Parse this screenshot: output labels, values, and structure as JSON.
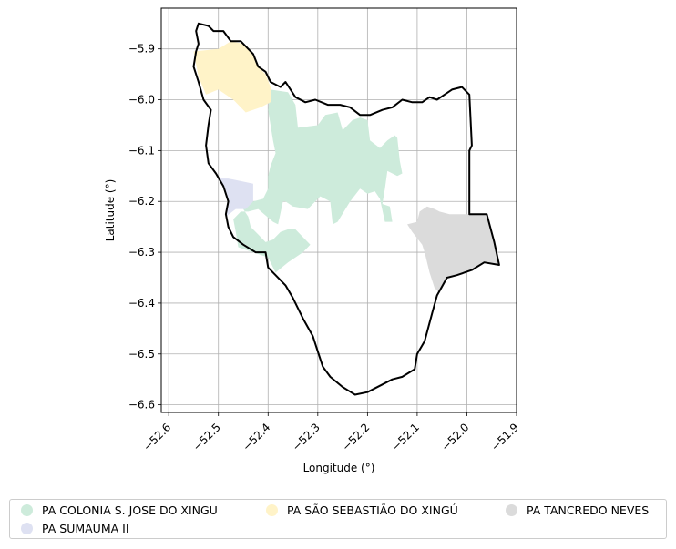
{
  "chart_data": {
    "type": "map",
    "title": "",
    "xlabel": "Longitude (°)",
    "ylabel": "Latitude (°)",
    "xlim": [
      -52.615,
      -51.9
    ],
    "ylim": [
      -6.615,
      -5.82
    ],
    "x_ticks": [
      -52.6,
      -52.5,
      -52.4,
      -52.3,
      -52.2,
      -52.1,
      -52.0,
      -51.9
    ],
    "x_tick_labels": [
      "−52.6",
      "−52.5",
      "−52.4",
      "−52.3",
      "−52.2",
      "−52.1",
      "−52.0",
      "−51.9"
    ],
    "y_ticks": [
      -5.9,
      -6.0,
      -6.1,
      -6.2,
      -6.3,
      -6.4,
      -6.5,
      -6.6
    ],
    "y_tick_labels": [
      "−5.9",
      "−6.0",
      "−6.1",
      "−6.2",
      "−6.3",
      "−6.4",
      "−6.5",
      "−6.6"
    ],
    "grid": true,
    "legend_placement": "bottom",
    "boundary": {
      "color": "#000000",
      "coords": [
        [
          -52.54,
          -5.85
        ],
        [
          -52.52,
          -5.855
        ],
        [
          -52.51,
          -5.865
        ],
        [
          -52.49,
          -5.865
        ],
        [
          -52.475,
          -5.885
        ],
        [
          -52.455,
          -5.885
        ],
        [
          -52.43,
          -5.91
        ],
        [
          -52.42,
          -5.935
        ],
        [
          -52.405,
          -5.945
        ],
        [
          -52.395,
          -5.965
        ],
        [
          -52.375,
          -5.975
        ],
        [
          -52.365,
          -5.965
        ],
        [
          -52.345,
          -5.995
        ],
        [
          -52.325,
          -6.005
        ],
        [
          -52.305,
          -6.0
        ],
        [
          -52.28,
          -6.01
        ],
        [
          -52.255,
          -6.01
        ],
        [
          -52.235,
          -6.015
        ],
        [
          -52.215,
          -6.03
        ],
        [
          -52.195,
          -6.03
        ],
        [
          -52.17,
          -6.02
        ],
        [
          -52.15,
          -6.015
        ],
        [
          -52.13,
          -6.0
        ],
        [
          -52.11,
          -6.005
        ],
        [
          -52.09,
          -6.005
        ],
        [
          -52.075,
          -5.995
        ],
        [
          -52.06,
          -6.0
        ],
        [
          -52.045,
          -5.99
        ],
        [
          -52.03,
          -5.98
        ],
        [
          -52.01,
          -5.975
        ],
        [
          -51.995,
          -5.99
        ],
        [
          -51.99,
          -6.09
        ],
        [
          -51.995,
          -6.1
        ],
        [
          -51.995,
          -6.225
        ],
        [
          -51.96,
          -6.225
        ],
        [
          -51.945,
          -6.28
        ],
        [
          -51.935,
          -6.325
        ],
        [
          -51.965,
          -6.32
        ],
        [
          -51.99,
          -6.335
        ],
        [
          -52.02,
          -6.345
        ],
        [
          -52.04,
          -6.35
        ],
        [
          -52.06,
          -6.385
        ],
        [
          -52.07,
          -6.42
        ],
        [
          -52.085,
          -6.475
        ],
        [
          -52.1,
          -6.5
        ],
        [
          -52.105,
          -6.53
        ],
        [
          -52.13,
          -6.545
        ],
        [
          -52.15,
          -6.55
        ],
        [
          -52.17,
          -6.56
        ],
        [
          -52.2,
          -6.575
        ],
        [
          -52.225,
          -6.58
        ],
        [
          -52.25,
          -6.565
        ],
        [
          -52.275,
          -6.545
        ],
        [
          -52.29,
          -6.525
        ],
        [
          -52.3,
          -6.495
        ],
        [
          -52.31,
          -6.465
        ],
        [
          -52.33,
          -6.43
        ],
        [
          -52.35,
          -6.39
        ],
        [
          -52.365,
          -6.365
        ],
        [
          -52.385,
          -6.345
        ],
        [
          -52.4,
          -6.33
        ],
        [
          -52.405,
          -6.3
        ],
        [
          -52.425,
          -6.3
        ],
        [
          -52.45,
          -6.285
        ],
        [
          -52.47,
          -6.27
        ],
        [
          -52.48,
          -6.25
        ],
        [
          -52.485,
          -6.225
        ],
        [
          -52.48,
          -6.2
        ],
        [
          -52.49,
          -6.17
        ],
        [
          -52.505,
          -6.145
        ],
        [
          -52.52,
          -6.125
        ],
        [
          -52.525,
          -6.09
        ],
        [
          -52.52,
          -6.05
        ],
        [
          -52.515,
          -6.02
        ],
        [
          -52.53,
          -6.0
        ],
        [
          -52.54,
          -5.965
        ],
        [
          -52.55,
          -5.935
        ],
        [
          -52.545,
          -5.905
        ],
        [
          -52.54,
          -5.89
        ],
        [
          -52.545,
          -5.865
        ],
        [
          -52.54,
          -5.85
        ]
      ]
    },
    "series": [
      {
        "name": "PA COLONIA S. JOSE DO XINGU",
        "color": "#cdebdb",
        "coords": [
          [
            -52.395,
            -5.98
          ],
          [
            -52.36,
            -5.985
          ],
          [
            -52.345,
            -6.01
          ],
          [
            -52.34,
            -6.055
          ],
          [
            -52.3,
            -6.05
          ],
          [
            -52.285,
            -6.03
          ],
          [
            -52.26,
            -6.025
          ],
          [
            -52.25,
            -6.06
          ],
          [
            -52.23,
            -6.04
          ],
          [
            -52.215,
            -6.035
          ],
          [
            -52.2,
            -6.04
          ],
          [
            -52.195,
            -6.08
          ],
          [
            -52.175,
            -6.095
          ],
          [
            -52.16,
            -6.08
          ],
          [
            -52.145,
            -6.07
          ],
          [
            -52.14,
            -6.075
          ],
          [
            -52.135,
            -6.12
          ],
          [
            -52.13,
            -6.145
          ],
          [
            -52.14,
            -6.15
          ],
          [
            -52.16,
            -6.14
          ],
          [
            -52.165,
            -6.175
          ],
          [
            -52.17,
            -6.205
          ],
          [
            -52.155,
            -6.21
          ],
          [
            -52.15,
            -6.24
          ],
          [
            -52.165,
            -6.24
          ],
          [
            -52.175,
            -6.195
          ],
          [
            -52.185,
            -6.18
          ],
          [
            -52.2,
            -6.185
          ],
          [
            -52.215,
            -6.175
          ],
          [
            -52.235,
            -6.2
          ],
          [
            -52.26,
            -6.24
          ],
          [
            -52.27,
            -6.245
          ],
          [
            -52.275,
            -6.2
          ],
          [
            -52.295,
            -6.19
          ],
          [
            -52.32,
            -6.215
          ],
          [
            -52.35,
            -6.21
          ],
          [
            -52.365,
            -6.2
          ],
          [
            -52.37,
            -6.2
          ],
          [
            -52.38,
            -6.245
          ],
          [
            -52.39,
            -6.24
          ],
          [
            -52.42,
            -6.215
          ],
          [
            -52.44,
            -6.22
          ],
          [
            -52.455,
            -6.22
          ],
          [
            -52.47,
            -6.235
          ],
          [
            -52.465,
            -6.26
          ],
          [
            -52.46,
            -6.29
          ],
          [
            -52.43,
            -6.3
          ],
          [
            -52.4,
            -6.31
          ],
          [
            -52.385,
            -6.34
          ],
          [
            -52.36,
            -6.32
          ],
          [
            -52.33,
            -6.3
          ],
          [
            -52.315,
            -6.285
          ],
          [
            -52.335,
            -6.265
          ],
          [
            -52.345,
            -6.255
          ],
          [
            -52.36,
            -6.255
          ],
          [
            -52.375,
            -6.26
          ],
          [
            -52.39,
            -6.275
          ],
          [
            -52.405,
            -6.28
          ],
          [
            -52.42,
            -6.265
          ],
          [
            -52.435,
            -6.25
          ],
          [
            -52.44,
            -6.23
          ],
          [
            -52.45,
            -6.215
          ],
          [
            -52.43,
            -6.2
          ],
          [
            -52.41,
            -6.195
          ],
          [
            -52.4,
            -6.175
          ],
          [
            -52.4,
            -6.15
          ],
          [
            -52.395,
            -6.13
          ],
          [
            -52.385,
            -6.105
          ],
          [
            -52.39,
            -6.08
          ],
          [
            -52.395,
            -6.05
          ],
          [
            -52.4,
            -6.02
          ],
          [
            -52.395,
            -5.98
          ]
        ]
      },
      {
        "name": "PA SUMAUMA II",
        "color": "#dee1f2",
        "coords": [
          [
            -52.5,
            -6.155
          ],
          [
            -52.48,
            -6.155
          ],
          [
            -52.455,
            -6.16
          ],
          [
            -52.43,
            -6.165
          ],
          [
            -52.43,
            -6.2
          ],
          [
            -52.445,
            -6.215
          ],
          [
            -52.465,
            -6.215
          ],
          [
            -52.485,
            -6.23
          ],
          [
            -52.48,
            -6.2
          ],
          [
            -52.49,
            -6.17
          ],
          [
            -52.5,
            -6.155
          ]
        ]
      },
      {
        "name": "PA SÃO SEBASTIÃO DO XINGÚ",
        "color": "#fff3c8",
        "coords": [
          [
            -52.55,
            -5.905
          ],
          [
            -52.5,
            -5.9
          ],
          [
            -52.475,
            -5.885
          ],
          [
            -52.45,
            -5.89
          ],
          [
            -52.43,
            -5.91
          ],
          [
            -52.42,
            -5.935
          ],
          [
            -52.405,
            -5.95
          ],
          [
            -52.395,
            -5.975
          ],
          [
            -52.395,
            -6.005
          ],
          [
            -52.415,
            -6.015
          ],
          [
            -52.445,
            -6.025
          ],
          [
            -52.47,
            -6.0
          ],
          [
            -52.5,
            -5.98
          ],
          [
            -52.525,
            -5.99
          ],
          [
            -52.54,
            -5.955
          ],
          [
            -52.55,
            -5.905
          ]
        ]
      },
      {
        "name": "PA TANCREDO NEVES",
        "color": "#dbdbdb",
        "coords": [
          [
            -52.08,
            -6.21
          ],
          [
            -52.065,
            -6.215
          ],
          [
            -52.055,
            -6.22
          ],
          [
            -52.035,
            -6.225
          ],
          [
            -51.995,
            -6.225
          ],
          [
            -51.96,
            -6.225
          ],
          [
            -51.945,
            -6.28
          ],
          [
            -51.935,
            -6.325
          ],
          [
            -51.965,
            -6.32
          ],
          [
            -51.99,
            -6.335
          ],
          [
            -52.02,
            -6.345
          ],
          [
            -52.04,
            -6.35
          ],
          [
            -52.055,
            -6.38
          ],
          [
            -52.065,
            -6.37
          ],
          [
            -52.075,
            -6.34
          ],
          [
            -52.085,
            -6.3
          ],
          [
            -52.09,
            -6.285
          ],
          [
            -52.11,
            -6.26
          ],
          [
            -52.12,
            -6.245
          ],
          [
            -52.1,
            -6.24
          ],
          [
            -52.095,
            -6.22
          ],
          [
            -52.08,
            -6.21
          ]
        ]
      }
    ]
  },
  "legend": {
    "items": [
      {
        "label": "PA COLONIA S. JOSE DO XINGU",
        "color": "#cdebdb"
      },
      {
        "label": "PA SÃO SEBASTIÃO DO XINGÚ",
        "color": "#fff3c8"
      },
      {
        "label": "PA TANCREDO NEVES",
        "color": "#dbdbdb"
      },
      {
        "label": "PA SUMAUMA II",
        "color": "#dee1f2"
      }
    ]
  }
}
